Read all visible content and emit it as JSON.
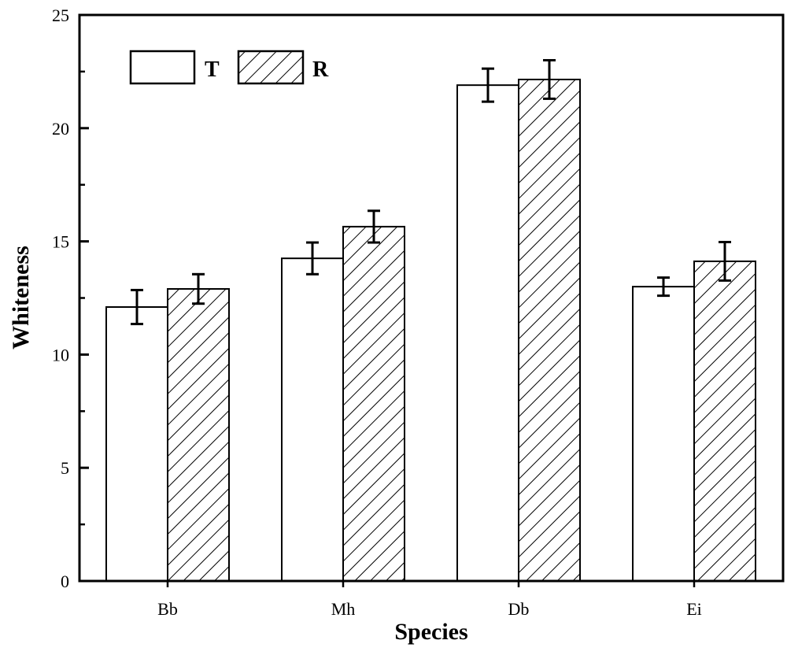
{
  "chart_data": {
    "type": "bar",
    "title": "",
    "xlabel": "Species",
    "ylabel": "Whiteness",
    "categories": [
      "Bb",
      "Mh",
      "Db",
      "Ei"
    ],
    "series": [
      {
        "name": "T",
        "pattern": "none",
        "values": [
          12.1,
          14.25,
          21.9,
          13.0
        ],
        "errors": [
          0.75,
          0.7,
          0.73,
          0.4
        ]
      },
      {
        "name": "R",
        "pattern": "diagonal-hatch",
        "values": [
          12.9,
          15.65,
          22.15,
          14.12
        ],
        "errors": [
          0.65,
          0.7,
          0.85,
          0.85
        ]
      }
    ],
    "ylim": [
      0,
      25
    ],
    "yticks": [
      "0",
      "5",
      "10",
      "15",
      "20",
      "25"
    ],
    "grid": false,
    "legend_position": "top-left",
    "colors": {
      "bar_stroke": "#000000",
      "bar_fill": "#ffffff"
    }
  }
}
